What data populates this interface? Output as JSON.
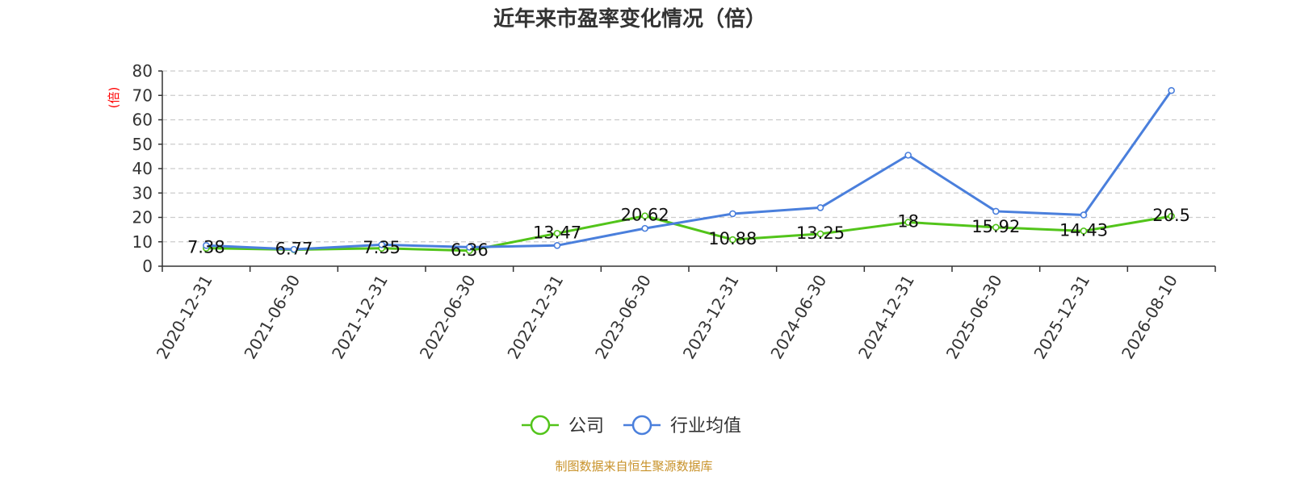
{
  "chart_data": {
    "type": "line",
    "title": "近年来市盈率变化情况（倍）",
    "ylabel": "(倍)",
    "xlabel": "",
    "categories": [
      "2020-12-31",
      "2021-06-30",
      "2021-12-31",
      "2022-06-30",
      "2022-12-31",
      "2023-06-30",
      "2023-12-31",
      "2024-06-30",
      "2024-12-31",
      "2025-06-30",
      "2025-12-31",
      "2026-08-10"
    ],
    "ylim": [
      0,
      80
    ],
    "yticks": [
      "0",
      "10",
      "20",
      "30",
      "40",
      "50",
      "60",
      "70",
      "80"
    ],
    "grid": true,
    "legend_position": "bottom",
    "series": [
      {
        "name": "公司",
        "color": "#52c41a",
        "values": [
          7.38,
          6.77,
          7.35,
          6.36,
          13.47,
          20.62,
          10.88,
          13.25,
          18,
          15.92,
          14.43,
          20.5
        ],
        "labels": [
          "7.38",
          "6.77",
          "7.35",
          "6.36",
          "13.47",
          "20.62",
          "10.88",
          "13.25",
          "18",
          "15.92",
          "14.43",
          "20.5"
        ]
      },
      {
        "name": "行业均值",
        "color": "#4a7fdc",
        "values": [
          8.5,
          6.9,
          8.8,
          7.8,
          8.5,
          15.5,
          21.5,
          24,
          45.5,
          22.5,
          21,
          72
        ]
      }
    ],
    "source": "制图数据来自恒生聚源数据库",
    "ylabel_color": "#ff0000",
    "source_color": "#c8922a"
  }
}
